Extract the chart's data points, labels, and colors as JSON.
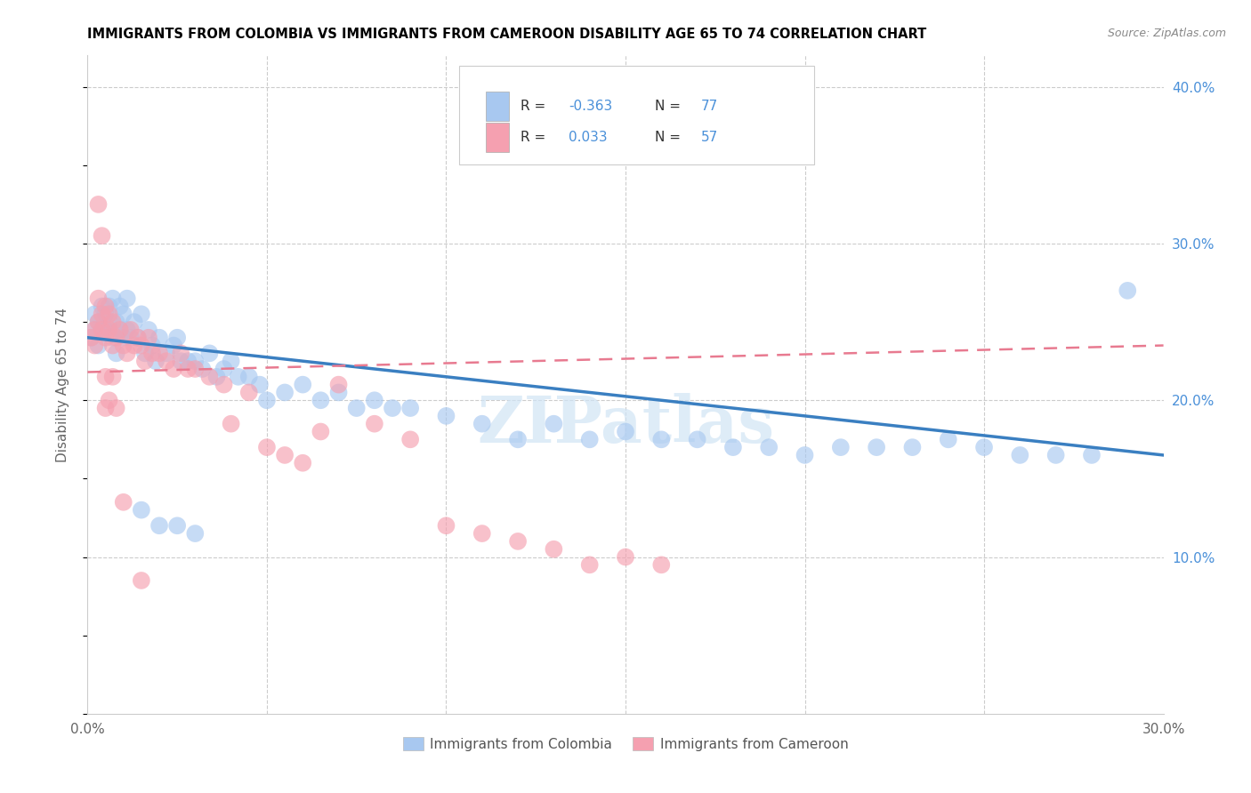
{
  "title": "IMMIGRANTS FROM COLOMBIA VS IMMIGRANTS FROM CAMEROON DISABILITY AGE 65 TO 74 CORRELATION CHART",
  "source": "Source: ZipAtlas.com",
  "ylabel": "Disability Age 65 to 74",
  "xlim": [
    0.0,
    0.3
  ],
  "ylim": [
    0.0,
    0.42
  ],
  "watermark": "ZIPatlas",
  "colombia_color": "#a8c8f0",
  "cameroon_color": "#f5a0b0",
  "colombia_line_color": "#3a7fc1",
  "cameroon_line_color": "#e87a90",
  "colombia_trend_x": [
    0.0,
    0.3
  ],
  "colombia_trend_y": [
    0.24,
    0.165
  ],
  "cameroon_trend_x": [
    0.0,
    0.3
  ],
  "cameroon_trend_y": [
    0.218,
    0.235
  ],
  "colombia_scatter_x": [
    0.001,
    0.002,
    0.002,
    0.003,
    0.003,
    0.004,
    0.004,
    0.005,
    0.005,
    0.006,
    0.006,
    0.007,
    0.007,
    0.008,
    0.008,
    0.009,
    0.009,
    0.01,
    0.01,
    0.011,
    0.011,
    0.012,
    0.013,
    0.014,
    0.015,
    0.016,
    0.017,
    0.018,
    0.019,
    0.02,
    0.022,
    0.024,
    0.025,
    0.026,
    0.028,
    0.03,
    0.032,
    0.034,
    0.036,
    0.038,
    0.04,
    0.042,
    0.045,
    0.048,
    0.05,
    0.055,
    0.06,
    0.065,
    0.07,
    0.075,
    0.08,
    0.085,
    0.09,
    0.1,
    0.11,
    0.12,
    0.13,
    0.14,
    0.15,
    0.16,
    0.17,
    0.18,
    0.19,
    0.2,
    0.21,
    0.22,
    0.23,
    0.24,
    0.25,
    0.26,
    0.27,
    0.28,
    0.29,
    0.015,
    0.02,
    0.025,
    0.03
  ],
  "colombia_scatter_y": [
    0.24,
    0.255,
    0.245,
    0.235,
    0.25,
    0.245,
    0.26,
    0.245,
    0.255,
    0.26,
    0.25,
    0.265,
    0.24,
    0.25,
    0.23,
    0.26,
    0.245,
    0.255,
    0.24,
    0.265,
    0.245,
    0.24,
    0.25,
    0.24,
    0.255,
    0.23,
    0.245,
    0.235,
    0.225,
    0.24,
    0.23,
    0.235,
    0.24,
    0.225,
    0.225,
    0.225,
    0.22,
    0.23,
    0.215,
    0.22,
    0.225,
    0.215,
    0.215,
    0.21,
    0.2,
    0.205,
    0.21,
    0.2,
    0.205,
    0.195,
    0.2,
    0.195,
    0.195,
    0.19,
    0.185,
    0.175,
    0.185,
    0.175,
    0.18,
    0.175,
    0.175,
    0.17,
    0.17,
    0.165,
    0.17,
    0.17,
    0.17,
    0.175,
    0.17,
    0.165,
    0.165,
    0.165,
    0.27,
    0.13,
    0.12,
    0.12,
    0.115
  ],
  "cameroon_scatter_x": [
    0.001,
    0.002,
    0.002,
    0.003,
    0.003,
    0.004,
    0.004,
    0.005,
    0.005,
    0.006,
    0.006,
    0.007,
    0.007,
    0.008,
    0.009,
    0.01,
    0.011,
    0.012,
    0.013,
    0.014,
    0.015,
    0.016,
    0.017,
    0.018,
    0.02,
    0.022,
    0.024,
    0.026,
    0.028,
    0.03,
    0.034,
    0.038,
    0.04,
    0.045,
    0.05,
    0.055,
    0.06,
    0.065,
    0.07,
    0.08,
    0.09,
    0.1,
    0.11,
    0.12,
    0.13,
    0.14,
    0.15,
    0.16,
    0.003,
    0.004,
    0.005,
    0.005,
    0.006,
    0.007,
    0.008,
    0.01,
    0.015
  ],
  "cameroon_scatter_y": [
    0.24,
    0.245,
    0.235,
    0.25,
    0.265,
    0.255,
    0.245,
    0.26,
    0.24,
    0.255,
    0.245,
    0.25,
    0.235,
    0.24,
    0.245,
    0.235,
    0.23,
    0.245,
    0.235,
    0.24,
    0.235,
    0.225,
    0.24,
    0.23,
    0.23,
    0.225,
    0.22,
    0.23,
    0.22,
    0.22,
    0.215,
    0.21,
    0.185,
    0.205,
    0.17,
    0.165,
    0.16,
    0.18,
    0.21,
    0.185,
    0.175,
    0.12,
    0.115,
    0.11,
    0.105,
    0.095,
    0.1,
    0.095,
    0.325,
    0.305,
    0.195,
    0.215,
    0.2,
    0.215,
    0.195,
    0.135,
    0.085
  ]
}
